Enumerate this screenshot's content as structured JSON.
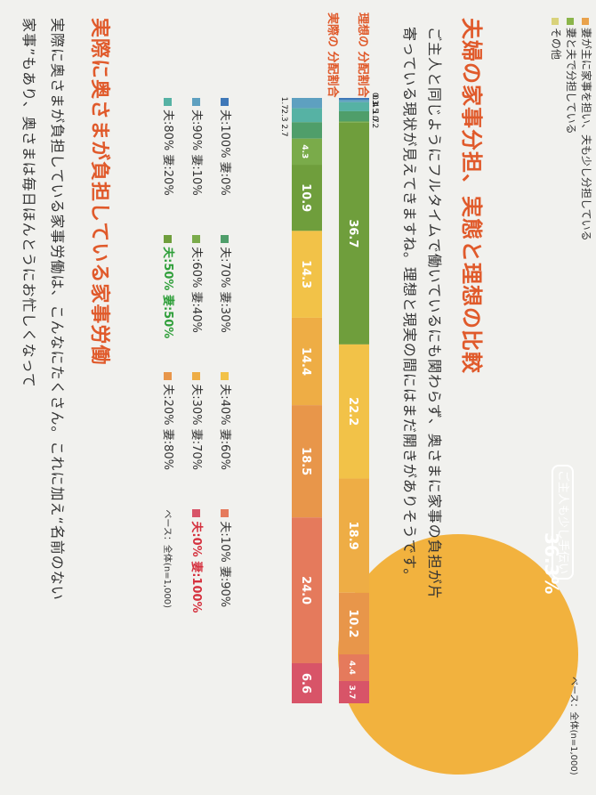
{
  "top_legend": [
    {
      "label": "妻が主に家事を担い、夫も少し分担している",
      "color": "#e9a24b"
    },
    {
      "label": "妻と夫で分担している",
      "color": "#8bb54a"
    },
    {
      "label": "その他",
      "color": "#d9d27a"
    }
  ],
  "side_pie": {
    "label": "ご主人も少し手伝い",
    "value": "36.3%",
    "base": "ベース：全体(n=1,000)"
  },
  "title": "夫婦の家事分担、実態と理想の比較",
  "body_lines": [
    "ご主人と同じようにフルタイムで働いているにも関わらず、奥さまに家事の負担が片",
    "寄っている現状が見えてきますね。理想と現実の間にはまだ開きがありそうです。"
  ],
  "subtitle": "実際に奥さまが負担している家事労働",
  "bottom_lines": [
    "実際に奥さまが負担している家事労働は、こんなにたくさん。これに加え“名前のない",
    "家事”もあり、奥さまは毎日ほんとうにお忙しくなって"
  ],
  "chart_data": {
    "type": "bar",
    "stacked": true,
    "percent": true,
    "title": "",
    "categories": [
      "理想の分配割合",
      "実際の分配割合"
    ],
    "series": [
      {
        "name": "夫:100% 妻:0%",
        "color": "#3f78b8",
        "values": [
          0.3,
          0
        ]
      },
      {
        "name": "夫:90% 妻:10%",
        "color": "#5ea0c0",
        "values": [
          0.4,
          1.7
        ]
      },
      {
        "name": "夫:80% 妻:20%",
        "color": "#56b2a4",
        "values": [
          1.5,
          2.3
        ]
      },
      {
        "name": "夫:70% 妻:30%",
        "color": "#4f9e6a",
        "values": [
          1.7,
          2.7
        ]
      },
      {
        "name": "夫:60% 妻:40%",
        "color": "#7aab4a",
        "values": [
          0.2,
          4.3
        ]
      },
      {
        "name": "夫:50% 妻:50%",
        "color": "#6f9e3c",
        "values": [
          36.7,
          10.9
        ]
      },
      {
        "name": "夫:40% 妻:60%",
        "color": "#f2c248",
        "values": [
          22.2,
          14.3
        ]
      },
      {
        "name": "夫:30% 妻:70%",
        "color": "#eead45",
        "values": [
          18.9,
          14.4
        ]
      },
      {
        "name": "夫:20% 妻:80%",
        "color": "#e8964a",
        "values": [
          10.2,
          18.5
        ]
      },
      {
        "name": "夫:10% 妻:90%",
        "color": "#e57a5c",
        "values": [
          4.4,
          24.0
        ]
      },
      {
        "name": "夫:0% 妻:100%",
        "color": "#d85468",
        "values": [
          3.7,
          6.6
        ]
      }
    ],
    "bar_labels": {
      "ideal": [
        "0.3",
        "0.4",
        "1.5",
        "1.7",
        "0.2",
        "36.7",
        "22.2",
        "18.9",
        "10.2",
        "4.4",
        "3.7"
      ],
      "actual": [
        "",
        "1.7",
        "2.3",
        "2.7",
        "4.3",
        "10.9",
        "14.3",
        "14.4",
        "18.5",
        "24.0",
        "6.6"
      ]
    },
    "axis_labels": {
      "ideal": "理想の 分配割合",
      "actual": "実際の 分配割合"
    },
    "base_note": "ベース：全体(n=1,000)"
  },
  "legend_rows": [
    [
      "夫:100% 妻:0%",
      "夫:70% 妻:30%",
      "夫:40% 妻:60%",
      "夫:10% 妻:90%"
    ],
    [
      "夫:90% 妻:10%",
      "夫:60% 妻:40%",
      "夫:30% 妻:70%",
      "夫:0% 妻:100%"
    ],
    [
      "夫:80% 妻:20%",
      "夫:50% 妻:50%",
      "夫:20% 妻:80%"
    ]
  ]
}
